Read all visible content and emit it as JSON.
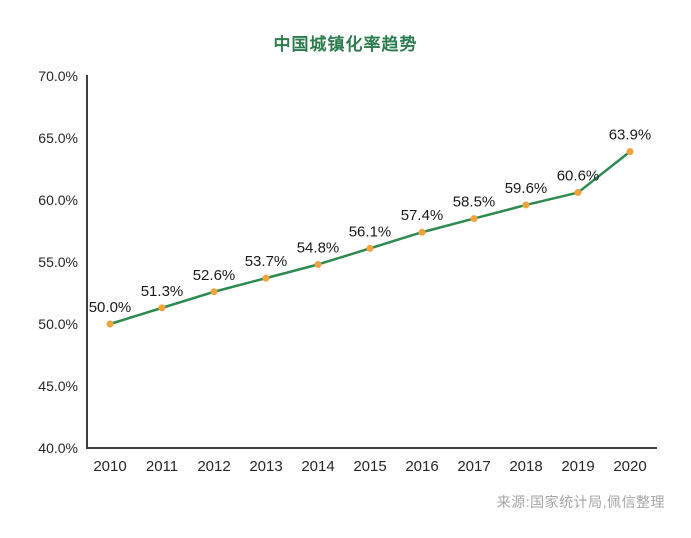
{
  "source_note": "来源:国家统计局,佩信整理",
  "chart_data": {
    "type": "line",
    "title": "中国城镇化率趋势",
    "x": [
      "2010",
      "2011",
      "2012",
      "2013",
      "2014",
      "2015",
      "2016",
      "2017",
      "2018",
      "2019",
      "2020"
    ],
    "values": [
      50.0,
      51.3,
      52.6,
      53.7,
      54.8,
      56.1,
      57.4,
      58.5,
      59.6,
      60.6,
      63.9
    ],
    "point_labels": [
      "50.0%",
      "51.3%",
      "52.6%",
      "53.7%",
      "54.8%",
      "56.1%",
      "57.4%",
      "58.5%",
      "59.6%",
      "60.6%",
      "63.9%"
    ],
    "xlabel": "",
    "ylabel": "",
    "ylim": [
      40,
      70
    ],
    "yticks": [
      40,
      45,
      50,
      55,
      60,
      65,
      70
    ],
    "ytick_labels": [
      "40.0%",
      "45.0%",
      "50.0%",
      "55.0%",
      "60.0%",
      "65.0%",
      "70.0%"
    ],
    "grid": false,
    "legend_position": "none",
    "colors": {
      "title": "#2e7d4f",
      "line": "#2e8b50",
      "marker": "#f2a33c",
      "axis": "#404040",
      "tick_label": "#262626",
      "data_label": "#1a1a1a",
      "source": "#a6a6a6"
    }
  }
}
